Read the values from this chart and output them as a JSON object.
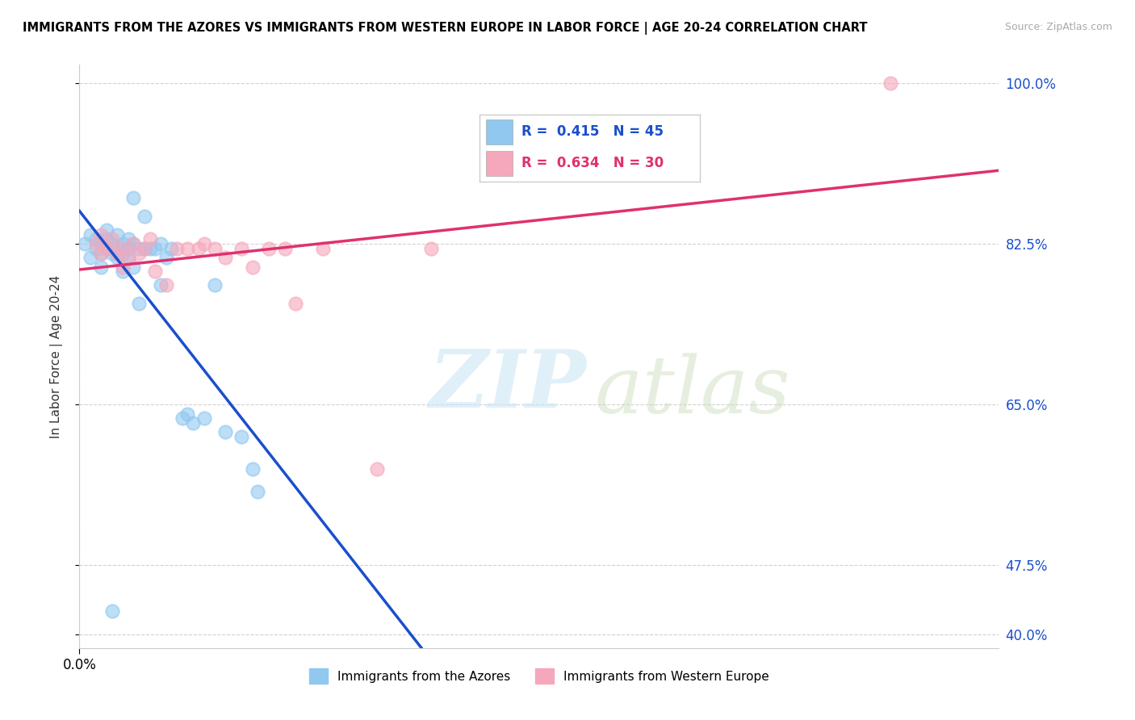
{
  "title": "IMMIGRANTS FROM THE AZORES VS IMMIGRANTS FROM WESTERN EUROPE IN LABOR FORCE | AGE 20-24 CORRELATION CHART",
  "source": "Source: ZipAtlas.com",
  "ylabel": "In Labor Force | Age 20-24",
  "legend_label1": "Immigrants from the Azores",
  "legend_label2": "Immigrants from Western Europe",
  "R1": 0.415,
  "N1": 45,
  "R2": 0.634,
  "N2": 30,
  "color1": "#90C8F0",
  "color2": "#F5A8BC",
  "line_color1": "#1A4FCC",
  "line_color2": "#E03070",
  "xmin": 0.0,
  "xmax": 0.17,
  "ymin": 0.385,
  "ymax": 1.02,
  "yticks": [
    0.4,
    0.475,
    0.65,
    0.825,
    1.0
  ],
  "ytick_labels": [
    "40.0%",
    "47.5%",
    "65.0%",
    "82.5%",
    "100.0%"
  ],
  "blue_x": [
    0.001,
    0.002,
    0.002,
    0.003,
    0.003,
    0.004,
    0.004,
    0.004,
    0.005,
    0.005,
    0.005,
    0.006,
    0.006,
    0.007,
    0.007,
    0.007,
    0.008,
    0.008,
    0.008,
    0.009,
    0.009,
    0.009,
    0.01,
    0.01,
    0.011,
    0.011,
    0.012,
    0.013,
    0.014,
    0.015,
    0.016,
    0.017,
    0.019,
    0.021,
    0.023,
    0.025,
    0.027,
    0.03,
    0.032,
    0.033,
    0.02,
    0.015,
    0.012,
    0.01,
    0.006
  ],
  "blue_y": [
    0.825,
    0.81,
    0.835,
    0.82,
    0.83,
    0.825,
    0.815,
    0.8,
    0.82,
    0.83,
    0.84,
    0.815,
    0.825,
    0.81,
    0.835,
    0.82,
    0.815,
    0.825,
    0.795,
    0.82,
    0.81,
    0.83,
    0.825,
    0.8,
    0.82,
    0.76,
    0.82,
    0.82,
    0.82,
    0.78,
    0.81,
    0.82,
    0.635,
    0.63,
    0.635,
    0.78,
    0.62,
    0.615,
    0.58,
    0.555,
    0.64,
    0.825,
    0.855,
    0.875,
    0.425
  ],
  "pink_x": [
    0.003,
    0.004,
    0.004,
    0.005,
    0.006,
    0.007,
    0.008,
    0.008,
    0.009,
    0.01,
    0.011,
    0.012,
    0.013,
    0.014,
    0.016,
    0.018,
    0.02,
    0.022,
    0.023,
    0.025,
    0.027,
    0.03,
    0.032,
    0.035,
    0.038,
    0.04,
    0.045,
    0.055,
    0.065,
    0.15
  ],
  "pink_y": [
    0.825,
    0.815,
    0.835,
    0.82,
    0.83,
    0.815,
    0.82,
    0.8,
    0.81,
    0.825,
    0.815,
    0.82,
    0.83,
    0.795,
    0.78,
    0.82,
    0.82,
    0.82,
    0.825,
    0.82,
    0.81,
    0.82,
    0.8,
    0.82,
    0.82,
    0.76,
    0.82,
    0.58,
    0.82,
    1.0
  ],
  "watermark_zip": "ZIP",
  "watermark_atlas": "atlas",
  "background_color": "#ffffff",
  "grid_color": "#cccccc"
}
